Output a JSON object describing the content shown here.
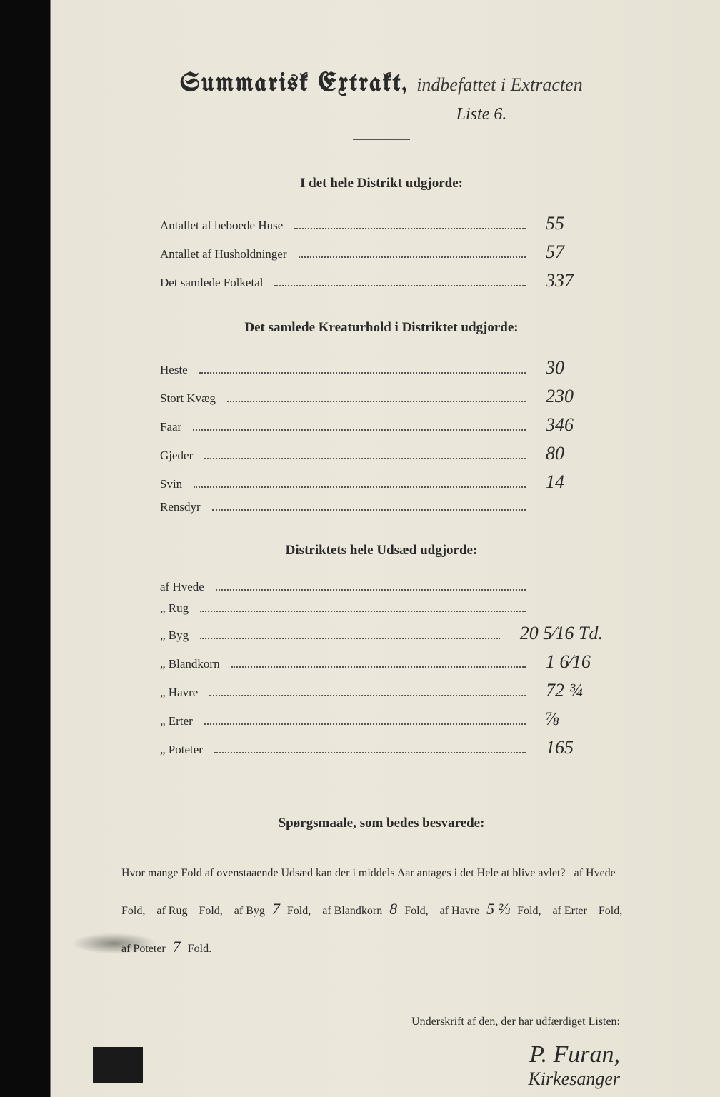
{
  "title": {
    "main": "Summarisk Extrakt,",
    "handwritten1": "indbefattet i Extracten",
    "handwritten2": "Liste 6."
  },
  "section1": {
    "heading": "I det hele Distrikt udgjorde:",
    "rows": [
      {
        "label": "Antallet af beboede Huse",
        "value": "55"
      },
      {
        "label": "Antallet af Husholdninger",
        "value": "57"
      },
      {
        "label": "Det samlede Folketal",
        "value": "337"
      }
    ]
  },
  "section2": {
    "heading": "Det samlede Kreaturhold i Distriktet udgjorde:",
    "rows": [
      {
        "label": "Heste",
        "value": "30"
      },
      {
        "label": "Stort Kvæg",
        "value": "230"
      },
      {
        "label": "Faar",
        "value": "346"
      },
      {
        "label": "Gjeder",
        "value": "80"
      },
      {
        "label": "Svin",
        "value": "14"
      },
      {
        "label": "Rensdyr",
        "value": ""
      }
    ]
  },
  "section3": {
    "heading": "Distriktets hele Udsæd udgjorde:",
    "rows": [
      {
        "label": "af Hvede",
        "value": ""
      },
      {
        "label": "„ Rug",
        "value": ""
      },
      {
        "label": "„ Byg",
        "value": "20 5⁄16 Td."
      },
      {
        "label": "„ Blandkorn",
        "value": "1 6⁄16"
      },
      {
        "label": "„ Havre",
        "value": "72 ¾"
      },
      {
        "label": "„ Erter",
        "value": "⅞"
      },
      {
        "label": "„ Poteter",
        "value": "165"
      }
    ]
  },
  "questions": {
    "heading": "Spørgsmaale, som bedes besvarede:",
    "intro": "Hvor mange Fold af ovenstaaende Udsæd kan der i middels Aar antages i det Hele at blive avlet?",
    "items": [
      {
        "label": "af Hvede",
        "value": "",
        "unit": "Fold,"
      },
      {
        "label": "af Rug",
        "value": "",
        "unit": "Fold,"
      },
      {
        "label": "af Byg",
        "value": "7",
        "unit": "Fold,"
      },
      {
        "label": "af Blandkorn",
        "value": "8",
        "unit": "Fold,"
      },
      {
        "label": "af Havre",
        "value": "5 ⅔",
        "unit": "Fold,"
      },
      {
        "label": "af Erter",
        "value": "",
        "unit": "Fold,"
      },
      {
        "label": "af Poteter",
        "value": "7",
        "unit": "Fold."
      }
    ]
  },
  "signature": {
    "label": "Underskrift af den, der har udfærdiget Listen:",
    "name": "P. Furan,",
    "role": "Kirkesanger"
  },
  "colors": {
    "paper": "#e8e4d8",
    "ink_print": "#2a2a2a",
    "ink_hand": "#3a3a3a",
    "background": "#1a1a1a"
  }
}
